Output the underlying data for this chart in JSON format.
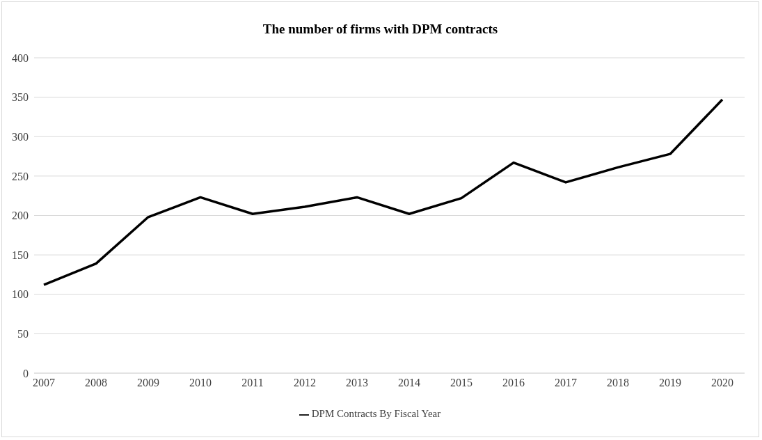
{
  "chart_data": {
    "type": "line",
    "title": "The number of firms with DPM contracts",
    "categories": [
      "2007",
      "2008",
      "2009",
      "2010",
      "2011",
      "2012",
      "2013",
      "2014",
      "2015",
      "2016",
      "2017",
      "2018",
      "2019",
      "2020"
    ],
    "series": [
      {
        "name": "DPM Contracts By Fiscal Year",
        "color": "#000000",
        "values": [
          112,
          139,
          198,
          223,
          202,
          211,
          223,
          202,
          222,
          267,
          242,
          261,
          278,
          347
        ]
      }
    ],
    "ylim": [
      0,
      400
    ],
    "yticks": [
      0,
      50,
      100,
      150,
      200,
      250,
      300,
      350,
      400
    ],
    "grid": "y",
    "legend": "bottom",
    "marker": "none",
    "line_style": "solid"
  }
}
